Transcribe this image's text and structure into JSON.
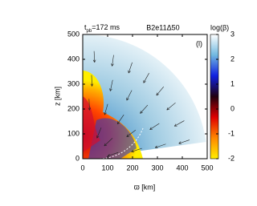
{
  "chart_data": {
    "type": "image",
    "time_label": {
      "symbol": "t",
      "subscript": "pb",
      "text": "=172 ms"
    },
    "title": "B2e11Δ50",
    "panel_label": "(l)",
    "x_label": "ϖ [km]",
    "y_label": "z [km]",
    "xlim": [
      0,
      500
    ],
    "xticks": [
      0,
      100,
      200,
      300,
      400,
      500
    ],
    "ylim": [
      0,
      500
    ],
    "yticks": [
      0,
      100,
      200,
      300,
      400,
      500
    ],
    "colorbar": {
      "label": "log(β)",
      "lim": [
        -2,
        3
      ],
      "ticks": [
        -2,
        -1,
        0,
        1,
        2,
        3
      ],
      "colors": [
        "#ffee00",
        "#ff8800",
        "#e00000",
        "#200010",
        "#1020e0",
        "#70b8e0",
        "#ffffff"
      ]
    }
  }
}
